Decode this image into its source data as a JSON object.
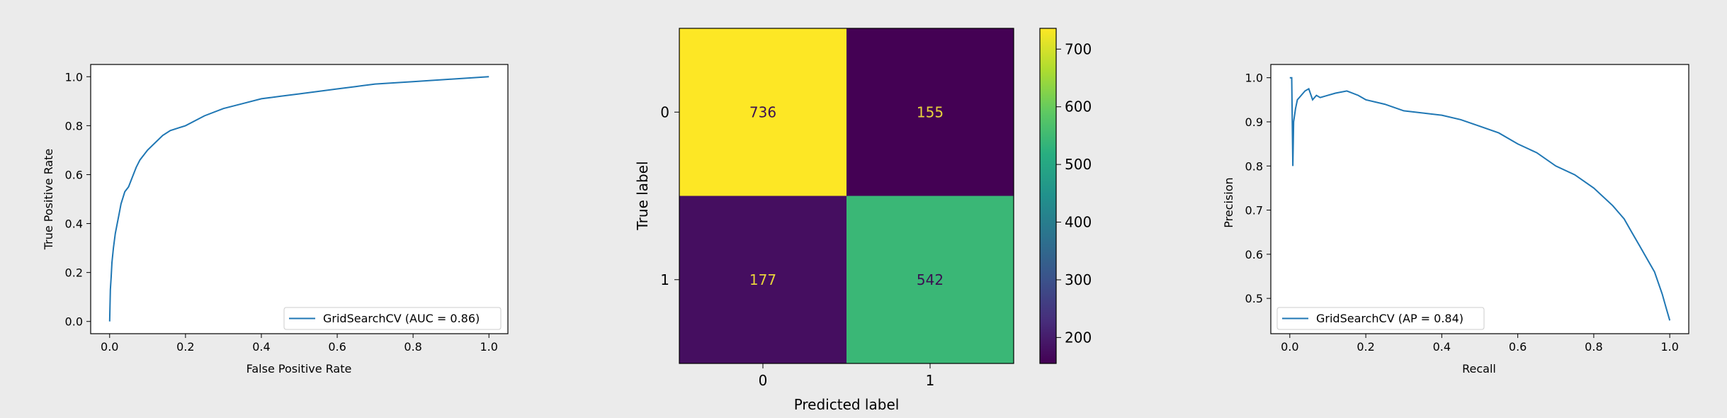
{
  "figure": {
    "background": "#ebebeb"
  },
  "chart_data": [
    {
      "type": "line",
      "xlabel": "False Positive Rate",
      "ylabel": "True Positive Rate",
      "xlim": [
        -0.05,
        1.05
      ],
      "ylim": [
        -0.05,
        1.05
      ],
      "xticks": [
        0.0,
        0.2,
        0.4,
        0.6,
        0.8,
        1.0
      ],
      "yticks": [
        0.0,
        0.2,
        0.4,
        0.6,
        0.8,
        1.0
      ],
      "tick_labels": [
        "0.0",
        "0.2",
        "0.4",
        "0.6",
        "0.8",
        "1.0"
      ],
      "grid": false,
      "legend_position": "lower-right",
      "color": "#1f77b4",
      "series": [
        {
          "name": "GridSearchCV (AUC = 0.86)",
          "x": [
            0,
            0.002,
            0.004,
            0.006,
            0.01,
            0.015,
            0.02,
            0.025,
            0.03,
            0.04,
            0.05,
            0.06,
            0.07,
            0.08,
            0.09,
            0.1,
            0.12,
            0.14,
            0.16,
            0.18,
            0.2,
            0.25,
            0.3,
            0.35,
            0.4,
            0.45,
            0.5,
            0.55,
            0.6,
            0.65,
            0.7,
            0.8,
            0.9,
            1.0
          ],
          "y": [
            0,
            0.13,
            0.18,
            0.24,
            0.3,
            0.36,
            0.4,
            0.44,
            0.48,
            0.53,
            0.55,
            0.59,
            0.63,
            0.66,
            0.68,
            0.7,
            0.73,
            0.76,
            0.78,
            0.79,
            0.8,
            0.84,
            0.87,
            0.89,
            0.91,
            0.92,
            0.93,
            0.94,
            0.95,
            0.96,
            0.97,
            0.98,
            0.99,
            1.0
          ]
        }
      ]
    },
    {
      "type": "heatmap",
      "xlabel": "Predicted label",
      "ylabel": "True label",
      "x_categories": [
        "0",
        "1"
      ],
      "y_categories": [
        "0",
        "1"
      ],
      "values": [
        [
          736,
          155
        ],
        [
          177,
          542
        ]
      ],
      "colormap": "viridis",
      "colorbar_range": [
        155,
        736
      ],
      "colorbar_ticks": [
        200,
        300,
        400,
        500,
        600,
        700
      ],
      "text_color_dark_cells": "#e8d43c",
      "text_color_light_cells": "#3b0f52"
    },
    {
      "type": "line",
      "xlabel": "Recall",
      "ylabel": "Precision",
      "xlim": [
        -0.05,
        1.05
      ],
      "ylim": [
        0.42,
        1.03
      ],
      "xticks": [
        0.0,
        0.2,
        0.4,
        0.6,
        0.8,
        1.0
      ],
      "yticks": [
        0.5,
        0.6,
        0.7,
        0.8,
        0.9,
        1.0
      ],
      "xtick_labels": [
        "0.0",
        "0.2",
        "0.4",
        "0.6",
        "0.8",
        "1.0"
      ],
      "ytick_labels": [
        "0.5",
        "0.6",
        "0.7",
        "0.8",
        "0.9",
        "1.0"
      ],
      "grid": false,
      "legend_position": "lower-left",
      "color": "#1f77b4",
      "series": [
        {
          "name": "GridSearchCV (AP = 0.84)",
          "x": [
            0.0,
            0.005,
            0.008,
            0.01,
            0.015,
            0.02,
            0.03,
            0.04,
            0.05,
            0.06,
            0.07,
            0.08,
            0.1,
            0.12,
            0.15,
            0.18,
            0.2,
            0.25,
            0.3,
            0.35,
            0.4,
            0.45,
            0.5,
            0.55,
            0.6,
            0.65,
            0.7,
            0.75,
            0.8,
            0.85,
            0.88,
            0.9,
            0.92,
            0.94,
            0.96,
            0.98,
            0.99,
            1.0
          ],
          "y": [
            1.0,
            1.0,
            0.8,
            0.9,
            0.93,
            0.95,
            0.96,
            0.97,
            0.975,
            0.95,
            0.96,
            0.955,
            0.96,
            0.965,
            0.97,
            0.96,
            0.95,
            0.94,
            0.925,
            0.92,
            0.915,
            0.905,
            0.89,
            0.875,
            0.85,
            0.83,
            0.8,
            0.78,
            0.75,
            0.71,
            0.68,
            0.65,
            0.62,
            0.59,
            0.56,
            0.51,
            0.48,
            0.45
          ]
        }
      ]
    }
  ]
}
